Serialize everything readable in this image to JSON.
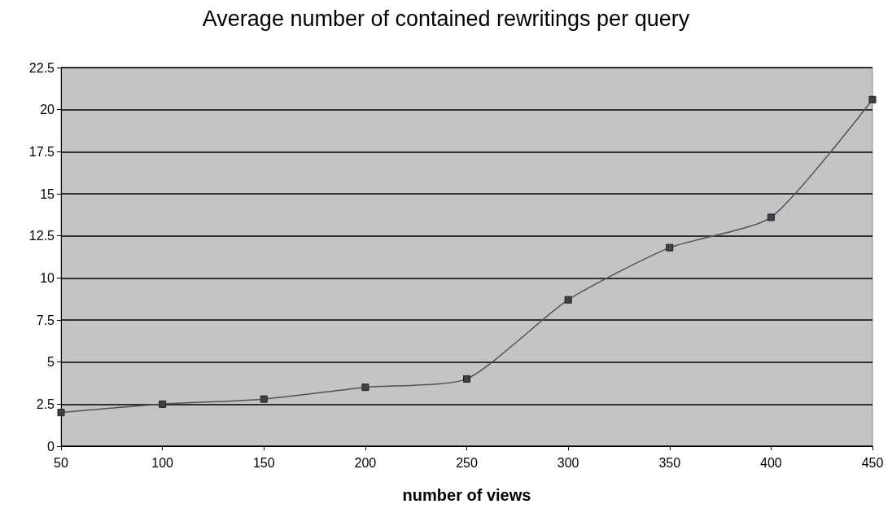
{
  "chart_data": {
    "type": "line",
    "title": "Average number of contained rewritings per query",
    "xlabel": "number of views",
    "x": [
      50,
      100,
      150,
      200,
      250,
      300,
      350,
      400,
      450
    ],
    "values": [
      2.0,
      2.5,
      2.8,
      3.5,
      4.0,
      8.7,
      11.8,
      13.6,
      20.6
    ],
    "color": "#505060",
    "marker": "square",
    "line_style": "solid",
    "grid": "y",
    "xlim": [
      50,
      450
    ],
    "xticks": [
      50,
      100,
      150,
      200,
      250,
      300,
      350,
      400,
      450
    ],
    "ylim": [
      0,
      22.5
    ],
    "yticks": [
      0,
      2.5,
      5,
      7.5,
      10,
      12.5,
      15,
      17.5,
      20,
      22.5
    ]
  }
}
